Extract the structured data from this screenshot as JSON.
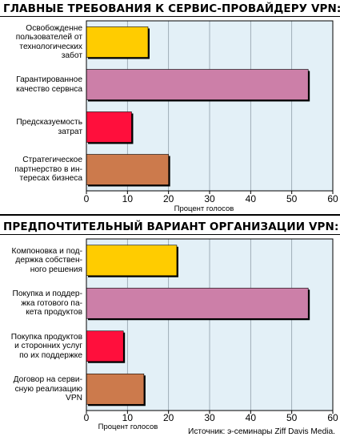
{
  "chart_data": [
    {
      "type": "bar",
      "orientation": "horizontal",
      "title": "ГЛАВНЫЕ ТРЕБОВАНИЯ К СЕРВИС-ПРОВАЙДЕРУ VPN:",
      "categories": [
        "Освобожденне пользователей от технологических забот",
        "Гарантированное качество сервнса",
        "Предсказуемость затрат",
        "Стратегическое партнерство в интересах бизнеса"
      ],
      "category_lines": [
        [
          "Освобожденне",
          "пользователей от",
          "технологических",
          "забот"
        ],
        [
          "Гарантированное",
          "качество сервнса"
        ],
        [
          "Предсказуемость",
          "затрат"
        ],
        [
          "Стратегическое",
          "партнерство в ин-",
          "тересах бизнеса"
        ]
      ],
      "values": [
        15,
        54,
        11,
        20
      ],
      "colors": [
        "#ffcc00",
        "#cc7fa8",
        "#ff0f3c",
        "#cc7a4c"
      ],
      "xlabel": "Процент голосов",
      "xlim": [
        0,
        60
      ],
      "xticks": [
        "0",
        "10",
        "20",
        "30",
        "40",
        "50",
        "60"
      ],
      "grid": true
    },
    {
      "type": "bar",
      "orientation": "horizontal",
      "title": "ПРЕДПОЧТИТЕЛЬНЫЙ ВАРИАНТ ОРГАНИЗАЦИИ VPN:",
      "categories": [
        "Компоновка и поддержка собственного решения",
        "Покупка и поддержка готового пакета продуктов",
        "Покупка продуктов и сторонних услуг по их поддержке",
        "Договор на сервисную реализацию VPN"
      ],
      "category_lines": [
        [
          "Компоновка и под-",
          "держка собствен-",
          "ного решения"
        ],
        [
          "Покупка и поддер-",
          "жка готового па-",
          "кета продуктов"
        ],
        [
          "Покупка продуктов",
          "и сторонних услуг",
          "по их поддержке"
        ],
        [
          "Договор на серви-",
          "сную реализацию",
          "VPN"
        ]
      ],
      "values": [
        22,
        54,
        9,
        14
      ],
      "colors": [
        "#ffcc00",
        "#cc7fa8",
        "#ff0f3c",
        "#cc7a4c"
      ],
      "xlabel": "Процент голосов",
      "xlim": [
        0,
        60
      ],
      "xticks": [
        "0",
        "10",
        "20",
        "30",
        "40",
        "50",
        "60"
      ],
      "grid": true
    }
  ],
  "source": "Источник: э-семинары Ziff Davis Media.",
  "colors": {
    "plot_bg": "#e3f0f7",
    "grid": "#8f9ea8"
  }
}
